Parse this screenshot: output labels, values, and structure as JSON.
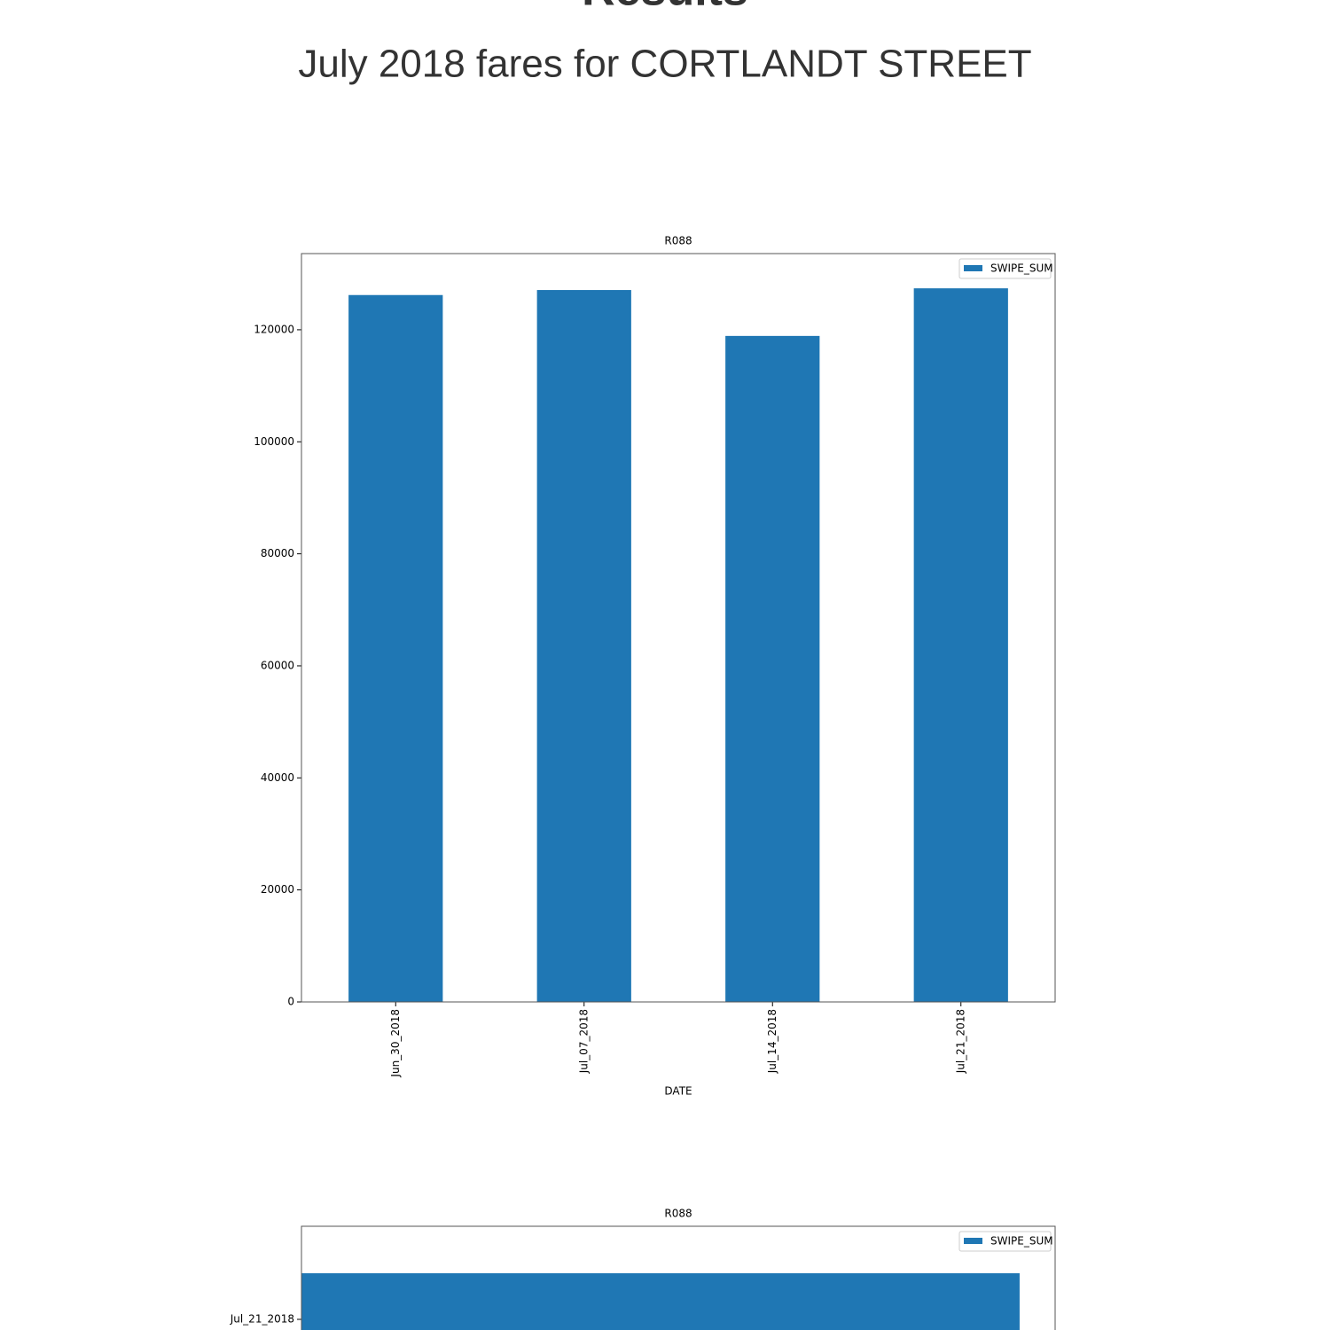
{
  "page": {
    "heading": "Results",
    "subtitle": "July 2018 fares for CORTLANDT STREET"
  },
  "chart_data": [
    {
      "type": "bar",
      "orientation": "vertical",
      "title": "R088",
      "categories": [
        "Jun_30_2018",
        "Jul_07_2018",
        "Jul_14_2018",
        "Jul_21_2018"
      ],
      "series": [
        {
          "name": "SWIPE_SUM",
          "color": "#1f77b4",
          "values": [
            126200,
            127100,
            118900,
            127400
          ]
        }
      ],
      "xlabel": "DATE",
      "ylim": [
        0,
        133600
      ],
      "yticks": [
        0,
        20000,
        40000,
        60000,
        80000,
        100000,
        120000
      ],
      "legend": "upper-right"
    },
    {
      "type": "bar",
      "orientation": "horizontal",
      "title": "R088",
      "categories": [
        "Jul_21_2018"
      ],
      "series": [
        {
          "name": "SWIPE_SUM",
          "color": "#1f77b4",
          "values": [
            127400
          ]
        }
      ],
      "xlim": [
        0,
        133700
      ],
      "legend": "upper-right"
    }
  ]
}
